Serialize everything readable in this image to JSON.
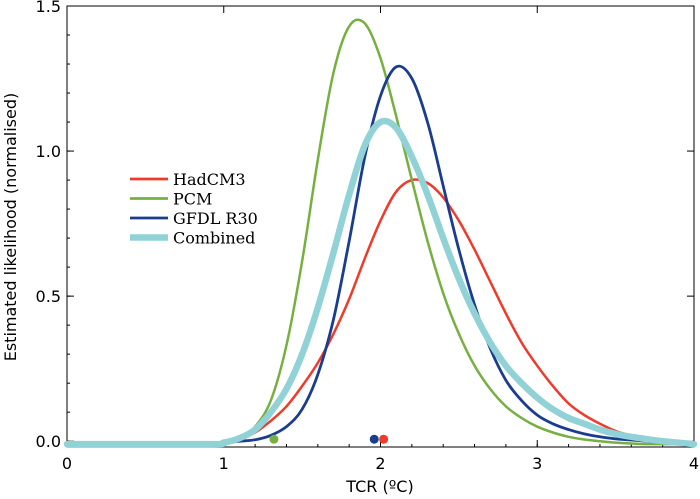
{
  "chart_data": {
    "type": "line",
    "title": "",
    "xlabel": "TCR (ºC)",
    "ylabel": "Estimated likelihood (normalised)",
    "xlim": [
      0,
      4
    ],
    "ylim": [
      -0.02,
      1.5
    ],
    "x_ticks": [
      "0",
      "1",
      "2",
      "3",
      "4"
    ],
    "y_ticks": [
      "0.0",
      "0.5",
      "1.0",
      "1.5"
    ],
    "grid": false,
    "legend_position": "middle-left",
    "series": [
      {
        "name": "HadCM3",
        "color": "#ef3b2c",
        "x": [
          0,
          0.9,
          1.0,
          1.1,
          1.2,
          1.3,
          1.4,
          1.5,
          1.6,
          1.7,
          1.8,
          1.9,
          2.0,
          2.1,
          2.2,
          2.3,
          2.4,
          2.5,
          2.6,
          2.7,
          2.8,
          2.9,
          3.0,
          3.1,
          3.2,
          3.3,
          3.4,
          3.5,
          3.6,
          3.7,
          3.8,
          3.9,
          4.0
        ],
        "values": [
          -0.01,
          -0.01,
          -0.005,
          0.01,
          0.03,
          0.07,
          0.12,
          0.19,
          0.27,
          0.37,
          0.49,
          0.63,
          0.76,
          0.86,
          0.9,
          0.89,
          0.84,
          0.76,
          0.66,
          0.55,
          0.44,
          0.34,
          0.26,
          0.19,
          0.13,
          0.09,
          0.06,
          0.035,
          0.02,
          0.008,
          0.0,
          -0.005,
          -0.01
        ],
        "marker_x": 2.02
      },
      {
        "name": "PCM",
        "color": "#76b041",
        "x": [
          0,
          0.9,
          1.0,
          1.1,
          1.2,
          1.3,
          1.4,
          1.5,
          1.6,
          1.7,
          1.8,
          1.9,
          2.0,
          2.1,
          2.2,
          2.3,
          2.4,
          2.5,
          2.6,
          2.7,
          2.8,
          2.9,
          3.0,
          3.1,
          3.2,
          3.3,
          3.4,
          3.5,
          3.6,
          3.7,
          3.8,
          3.9,
          4.0
        ],
        "values": [
          -0.01,
          -0.01,
          -0.005,
          0.01,
          0.05,
          0.14,
          0.33,
          0.62,
          0.97,
          1.27,
          1.43,
          1.44,
          1.32,
          1.12,
          0.9,
          0.69,
          0.51,
          0.37,
          0.26,
          0.18,
          0.12,
          0.08,
          0.05,
          0.03,
          0.015,
          0.006,
          0.0,
          -0.005,
          -0.008,
          -0.01,
          -0.01,
          -0.01,
          -0.01
        ],
        "marker_x": 1.32
      },
      {
        "name": "GFDL R30",
        "color": "#1a3d8f",
        "x": [
          0,
          0.9,
          1.0,
          1.1,
          1.2,
          1.3,
          1.4,
          1.5,
          1.6,
          1.7,
          1.8,
          1.9,
          2.0,
          2.1,
          2.2,
          2.3,
          2.4,
          2.5,
          2.6,
          2.7,
          2.8,
          2.9,
          3.0,
          3.1,
          3.2,
          3.3,
          3.4,
          3.5,
          3.6,
          3.7,
          3.8,
          3.9,
          4.0
        ],
        "values": [
          -0.01,
          -0.01,
          -0.005,
          0.0,
          0.005,
          0.02,
          0.05,
          0.11,
          0.23,
          0.42,
          0.69,
          0.98,
          1.19,
          1.29,
          1.25,
          1.1,
          0.88,
          0.66,
          0.47,
          0.32,
          0.21,
          0.14,
          0.09,
          0.06,
          0.04,
          0.025,
          0.015,
          0.008,
          0.004,
          0.0,
          -0.005,
          -0.008,
          -0.01
        ],
        "marker_x": 1.96
      },
      {
        "name": "Combined",
        "color": "#90d2d5",
        "x": [
          0,
          0.9,
          1.0,
          1.1,
          1.2,
          1.3,
          1.4,
          1.5,
          1.6,
          1.7,
          1.8,
          1.9,
          2.0,
          2.1,
          2.2,
          2.3,
          2.4,
          2.5,
          2.6,
          2.7,
          2.8,
          2.9,
          3.0,
          3.1,
          3.2,
          3.3,
          3.4,
          3.5,
          3.6,
          3.7,
          3.8,
          3.9,
          4.0
        ],
        "values": [
          -0.01,
          -0.01,
          -0.005,
          0.01,
          0.04,
          0.1,
          0.18,
          0.3,
          0.46,
          0.65,
          0.85,
          1.02,
          1.1,
          1.08,
          0.98,
          0.85,
          0.7,
          0.56,
          0.44,
          0.34,
          0.26,
          0.2,
          0.15,
          0.11,
          0.08,
          0.06,
          0.04,
          0.025,
          0.015,
          0.007,
          0.0,
          -0.005,
          -0.01
        ]
      }
    ]
  }
}
